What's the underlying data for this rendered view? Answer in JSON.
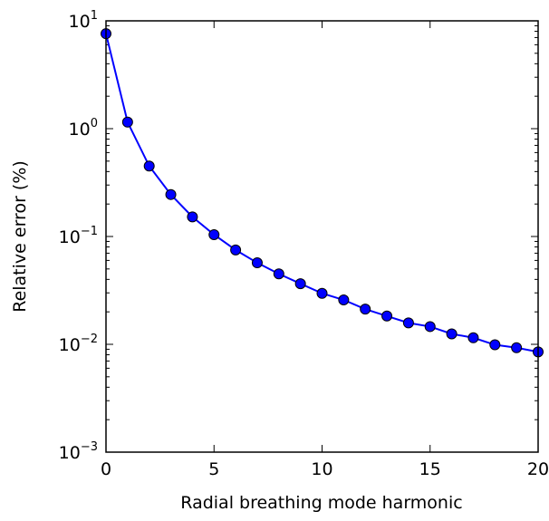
{
  "chart_data": {
    "type": "line",
    "xlabel": "Radial breathing mode harmonic",
    "ylabel": "Relative error (%)",
    "xlim": [
      0,
      20
    ],
    "ylim": [
      0.001,
      10
    ],
    "y_scale": "log",
    "x_ticks": [
      0,
      5,
      10,
      15,
      20
    ],
    "y_ticks": [
      {
        "value": 10,
        "base": "10",
        "exp": "1"
      },
      {
        "value": 1,
        "base": "10",
        "exp": "0"
      },
      {
        "value": 0.1,
        "base": "10",
        "exp": "−1"
      },
      {
        "value": 0.01,
        "base": "10",
        "exp": "−2"
      },
      {
        "value": 0.001,
        "base": "10",
        "exp": "−3"
      }
    ],
    "grid": false,
    "series": [
      {
        "color": "#0000ff",
        "marker": "circle",
        "x": [
          0,
          1,
          2,
          3,
          4,
          5,
          6,
          7,
          8,
          9,
          10,
          11,
          12,
          13,
          14,
          15,
          16,
          17,
          18,
          19,
          20
        ],
        "y": [
          7.6,
          1.15,
          0.45,
          0.245,
          0.152,
          0.104,
          0.075,
          0.057,
          0.045,
          0.0365,
          0.0297,
          0.0258,
          0.0212,
          0.0183,
          0.0158,
          0.0146,
          0.0125,
          0.0115,
          0.0099,
          0.0093,
          0.0085
        ]
      }
    ]
  }
}
